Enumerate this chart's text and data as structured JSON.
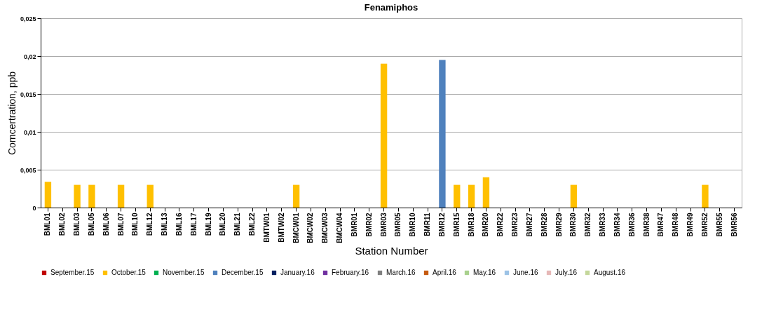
{
  "chart_data": {
    "type": "bar",
    "title": "Fenamiphos",
    "xlabel": "Station Number",
    "ylabel": "Comcertration, ppb",
    "categories": [
      "BML01",
      "BML02",
      "BML03",
      "BML05",
      "BML06",
      "BML07",
      "BML10",
      "BML12",
      "BML13",
      "BML16",
      "BML17",
      "BML19",
      "BML20",
      "BML21",
      "BML22",
      "BMTW01",
      "BMTW02",
      "BMCW01",
      "BMCW02",
      "BMCW03",
      "BMCW04",
      "BMR01",
      "BMR02",
      "BMR03",
      "BMR05",
      "BMR10",
      "BMR11",
      "BMR12",
      "BMR15",
      "BMR18",
      "BMR20",
      "BMR22",
      "BMR23",
      "BMR27",
      "BMR28",
      "BMR29",
      "BMR30",
      "BMR32",
      "BMR33",
      "BMR34",
      "BMR36",
      "BMR38",
      "BMR47",
      "BMR48",
      "BMR49",
      "BMR52",
      "BMR55",
      "BMR56"
    ],
    "series": [
      {
        "name": "September.15",
        "color": "#c00000",
        "values": [
          null,
          null,
          null,
          null,
          null,
          null,
          null,
          null,
          null,
          null,
          null,
          null,
          null,
          null,
          null,
          null,
          null,
          null,
          null,
          null,
          null,
          null,
          null,
          null,
          null,
          null,
          null,
          null,
          null,
          null,
          null,
          null,
          null,
          null,
          null,
          null,
          null,
          null,
          null,
          null,
          null,
          null,
          null,
          null,
          null,
          null,
          null,
          null
        ]
      },
      {
        "name": "October.15",
        "color": "#ffc000",
        "values": [
          0.0034,
          null,
          0.003,
          0.003,
          null,
          0.003,
          null,
          0.003,
          null,
          null,
          null,
          null,
          null,
          null,
          null,
          null,
          null,
          0.003,
          null,
          null,
          null,
          null,
          null,
          0.019,
          null,
          null,
          null,
          null,
          0.003,
          0.003,
          0.004,
          null,
          null,
          null,
          null,
          null,
          0.003,
          null,
          null,
          null,
          null,
          null,
          null,
          null,
          null,
          0.003,
          null,
          null
        ]
      },
      {
        "name": "November.15",
        "color": "#00b050",
        "values": [
          null,
          null,
          null,
          null,
          null,
          null,
          null,
          null,
          null,
          null,
          null,
          null,
          null,
          null,
          null,
          null,
          null,
          null,
          null,
          null,
          null,
          null,
          null,
          null,
          null,
          null,
          null,
          null,
          null,
          null,
          null,
          null,
          null,
          null,
          null,
          null,
          null,
          null,
          null,
          null,
          null,
          null,
          null,
          null,
          null,
          null,
          null,
          null
        ]
      },
      {
        "name": "December.15",
        "color": "#4f81bd",
        "values": [
          null,
          null,
          null,
          null,
          null,
          null,
          null,
          null,
          null,
          null,
          null,
          null,
          null,
          null,
          null,
          null,
          null,
          null,
          null,
          null,
          null,
          null,
          null,
          null,
          null,
          null,
          null,
          0.0195,
          null,
          null,
          null,
          null,
          null,
          null,
          null,
          null,
          null,
          null,
          null,
          null,
          null,
          null,
          null,
          null,
          null,
          null,
          null,
          null
        ]
      },
      {
        "name": "January.16",
        "color": "#002060",
        "values": [
          null,
          null,
          null,
          null,
          null,
          null,
          null,
          null,
          null,
          null,
          null,
          null,
          null,
          null,
          null,
          null,
          null,
          null,
          null,
          null,
          null,
          null,
          null,
          null,
          null,
          null,
          null,
          null,
          null,
          null,
          null,
          null,
          null,
          null,
          null,
          null,
          null,
          null,
          null,
          null,
          null,
          null,
          null,
          null,
          null,
          null,
          null,
          null
        ]
      },
      {
        "name": "February.16",
        "color": "#7030a0",
        "values": [
          null,
          null,
          null,
          null,
          null,
          null,
          null,
          null,
          null,
          null,
          null,
          null,
          null,
          null,
          null,
          null,
          null,
          null,
          null,
          null,
          null,
          null,
          null,
          null,
          null,
          null,
          null,
          null,
          null,
          null,
          null,
          null,
          null,
          null,
          null,
          null,
          null,
          null,
          null,
          null,
          null,
          null,
          null,
          null,
          null,
          null,
          null,
          null
        ]
      },
      {
        "name": "March.16",
        "color": "#808080",
        "values": [
          null,
          null,
          null,
          null,
          null,
          null,
          null,
          null,
          null,
          null,
          null,
          null,
          null,
          null,
          null,
          null,
          null,
          null,
          null,
          null,
          null,
          null,
          null,
          null,
          null,
          null,
          null,
          null,
          null,
          null,
          null,
          null,
          null,
          null,
          null,
          null,
          null,
          null,
          null,
          null,
          null,
          null,
          null,
          null,
          null,
          null,
          null,
          null
        ]
      },
      {
        "name": "April.16",
        "color": "#c55a11",
        "values": [
          null,
          null,
          null,
          null,
          null,
          null,
          null,
          null,
          null,
          null,
          null,
          null,
          null,
          null,
          null,
          null,
          null,
          null,
          null,
          null,
          null,
          null,
          null,
          null,
          null,
          null,
          null,
          null,
          null,
          null,
          null,
          null,
          null,
          null,
          null,
          null,
          null,
          null,
          null,
          null,
          null,
          null,
          null,
          null,
          null,
          null,
          null,
          null
        ]
      },
      {
        "name": "May.16",
        "color": "#a9d18e",
        "values": [
          null,
          null,
          null,
          null,
          null,
          null,
          null,
          null,
          null,
          null,
          null,
          null,
          null,
          null,
          null,
          null,
          null,
          null,
          null,
          null,
          null,
          null,
          null,
          null,
          null,
          null,
          null,
          null,
          null,
          null,
          null,
          null,
          null,
          null,
          null,
          null,
          null,
          null,
          null,
          null,
          null,
          null,
          null,
          null,
          null,
          null,
          null,
          null
        ]
      },
      {
        "name": "June.16",
        "color": "#9dc3e6",
        "values": [
          null,
          null,
          null,
          null,
          null,
          null,
          null,
          null,
          null,
          null,
          null,
          null,
          null,
          null,
          null,
          null,
          null,
          null,
          null,
          null,
          null,
          null,
          null,
          null,
          null,
          null,
          null,
          null,
          null,
          null,
          null,
          null,
          null,
          null,
          null,
          null,
          null,
          null,
          null,
          null,
          null,
          null,
          null,
          null,
          null,
          null,
          null,
          null
        ]
      },
      {
        "name": "July.16",
        "color": "#e6b8b7",
        "values": [
          null,
          null,
          null,
          null,
          null,
          null,
          null,
          null,
          null,
          null,
          null,
          null,
          null,
          null,
          null,
          null,
          null,
          null,
          null,
          null,
          null,
          null,
          null,
          null,
          null,
          null,
          null,
          null,
          null,
          null,
          null,
          null,
          null,
          null,
          null,
          null,
          null,
          null,
          null,
          null,
          null,
          null,
          null,
          null,
          null,
          null,
          null,
          null
        ]
      },
      {
        "name": "August.16",
        "color": "#c4d79b",
        "values": [
          null,
          null,
          null,
          null,
          null,
          null,
          null,
          null,
          null,
          null,
          null,
          null,
          null,
          null,
          null,
          null,
          null,
          null,
          null,
          null,
          null,
          null,
          null,
          null,
          null,
          null,
          null,
          null,
          null,
          null,
          null,
          null,
          null,
          null,
          null,
          null,
          null,
          null,
          null,
          null,
          null,
          null,
          null,
          null,
          null,
          null,
          null,
          null
        ]
      }
    ],
    "ylim": [
      0,
      0.025
    ],
    "yticks": [
      0,
      {
        "value": 0.005,
        "label": "0,005"
      },
      {
        "value": 0.01,
        "label": "0,01"
      },
      {
        "value": 0.015,
        "label": "0,015"
      },
      {
        "value": 0.02,
        "label": "0,02"
      },
      {
        "value": 0.025,
        "label": "0,025"
      }
    ],
    "grid": "y",
    "legend": "bottom"
  }
}
